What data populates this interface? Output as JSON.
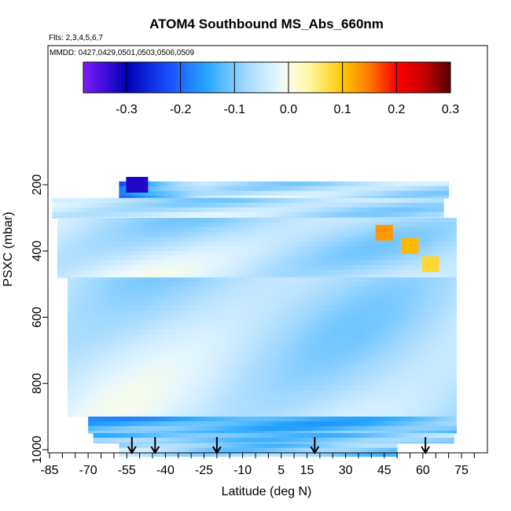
{
  "chart_data": {
    "type": "heatmap",
    "title": "ATOM4 Southbound MS_Abs_660nm",
    "flights_label": "Flts: 2,3,4,5,6,7",
    "mmdd_label": "MMDD: 0427,0429,0501,0503,0506,0509",
    "xlabel": "Latitude (deg N)",
    "ylabel": "PSXC (mbar)",
    "xlim": [
      -88,
      82
    ],
    "ylim": [
      1020,
      0
    ],
    "x_ticks": [
      "-85",
      "-70",
      "-55",
      "-40",
      "-25",
      "-10",
      "5",
      "15",
      "30",
      "45",
      "60",
      "75"
    ],
    "y_ticks": [
      "200",
      "400",
      "600",
      "800",
      "1000"
    ],
    "colorbar": {
      "range": [
        -0.38,
        0.3
      ],
      "ticks": [
        "-0.3",
        "-0.2",
        "-0.1",
        "0.0",
        "0.1",
        "0.2",
        "0.3"
      ],
      "stops": [
        {
          "v": -0.38,
          "color": "#7f1cff"
        },
        {
          "v": -0.3,
          "color": "#0000b4"
        },
        {
          "v": -0.22,
          "color": "#1c50ff"
        },
        {
          "v": -0.15,
          "color": "#28a8ff"
        },
        {
          "v": -0.08,
          "color": "#a0d8ff"
        },
        {
          "v": -0.02,
          "color": "#e4f6ff"
        },
        {
          "v": 0.0,
          "color": "#fbfde8"
        },
        {
          "v": 0.04,
          "color": "#fff6a0"
        },
        {
          "v": 0.1,
          "color": "#ffc800"
        },
        {
          "v": 0.15,
          "color": "#ff7800"
        },
        {
          "v": 0.2,
          "color": "#ff0000"
        },
        {
          "v": 0.25,
          "color": "#c80000"
        },
        {
          "v": 0.3,
          "color": "#550000"
        }
      ]
    },
    "profile_latitudes": [
      -53,
      -44,
      -20,
      18,
      61
    ],
    "curtain_segments": [
      {
        "lat": [
          -58,
          70
        ],
        "p": [
          190,
          240
        ],
        "base": -0.05,
        "grad": -0.18
      },
      {
        "lat": [
          -84,
          68
        ],
        "p": [
          240,
          300
        ],
        "base": -0.05,
        "grad": -0.01
      },
      {
        "lat": [
          -82,
          73
        ],
        "p": [
          300,
          480
        ],
        "base": -0.05,
        "grad": -0.01
      },
      {
        "lat": [
          -78,
          73
        ],
        "p": [
          480,
          900
        ],
        "base": -0.05,
        "grad": -0.01
      },
      {
        "lat": [
          -70,
          73
        ],
        "p": [
          900,
          950
        ],
        "base": -0.09,
        "grad": -0.06
      },
      {
        "lat": [
          -68,
          72
        ],
        "p": [
          950,
          980
        ],
        "base": -0.07,
        "grad": -0.05
      },
      {
        "lat": [
          -58,
          50
        ],
        "p": [
          980,
          1020
        ],
        "base": -0.08,
        "grad": 0.0
      }
    ],
    "hotspots": [
      {
        "lat": 45,
        "p": 345,
        "value": 0.13,
        "label": "orange-max"
      },
      {
        "lat": 55,
        "p": 385,
        "value": 0.11,
        "label": "orange"
      },
      {
        "lat": 63,
        "p": 440,
        "value": 0.08,
        "label": "yellow"
      },
      {
        "lat": -51,
        "p": 200,
        "value": -0.32,
        "label": "dark-blue-min"
      }
    ]
  }
}
